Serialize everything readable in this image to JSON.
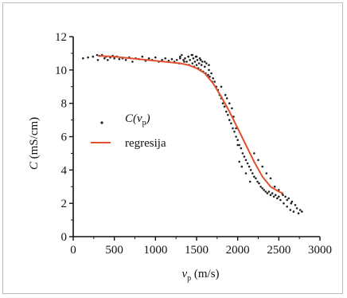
{
  "chart_data": {
    "type": "scatter",
    "title": "",
    "xlabel": {
      "main": "v",
      "sub": "p",
      "unit": " (m/s)"
    },
    "ylabel": {
      "main": "C",
      "unit": " (mS/cm)"
    },
    "xlim": [
      0,
      3000
    ],
    "ylim": [
      0,
      12
    ],
    "xticks": [
      0,
      500,
      1000,
      1500,
      2000,
      2500,
      3000
    ],
    "yticks": [
      0,
      2,
      4,
      6,
      8,
      10,
      12
    ],
    "grid": false,
    "legend_position": "center-left",
    "colors": {
      "points": "#222222",
      "regression": "#e0522f",
      "axis": "#111111"
    },
    "legend": {
      "points_label": {
        "main": "C(v",
        "sub": "p",
        "close": ")"
      },
      "regression_label": "regresija"
    },
    "series": [
      {
        "name": "C(vp)",
        "kind": "points",
        "x": [
          120,
          180,
          240,
          290,
          300,
          320,
          350,
          380,
          400,
          420,
          450,
          480,
          500,
          530,
          560,
          600,
          640,
          680,
          720,
          760,
          800,
          840,
          880,
          920,
          960,
          1000,
          1040,
          1080,
          1120,
          1160,
          1200,
          1230,
          1260,
          1290,
          1300,
          1320,
          1340,
          1360,
          1380,
          1400,
          1410,
          1420,
          1440,
          1450,
          1460,
          1470,
          1480,
          1490,
          1500,
          1510,
          1520,
          1530,
          1540,
          1550,
          1560,
          1570,
          1580,
          1600,
          1610,
          1620,
          1640,
          1650,
          1660,
          1680,
          1690,
          1700,
          1720,
          1740,
          1760,
          1780,
          1800,
          1820,
          1840,
          1860,
          1880,
          1900,
          1920,
          1940,
          1960,
          1980,
          2000,
          2020,
          2040,
          2060,
          2080,
          2100,
          2120,
          2140,
          2160,
          2180,
          2200,
          2220,
          2240,
          2260,
          2280,
          2300,
          2320,
          2340,
          2360,
          2380,
          2400,
          2420,
          2440,
          2460,
          2480,
          2500,
          2520,
          2540,
          2560,
          2580,
          2600,
          2620,
          2640,
          2660,
          2680,
          2700,
          2720,
          2740,
          2760,
          2780,
          1850,
          1900,
          1950,
          1980,
          2000,
          2020,
          1800,
          1870,
          1930,
          2050,
          2100,
          2150,
          1400,
          1450,
          1500,
          1550,
          1600,
          1650,
          1300,
          1350,
          2400,
          2450,
          2500,
          2550,
          2600,
          2650,
          2350,
          2300,
          2250,
          2200
        ],
        "y": [
          10.7,
          10.75,
          10.8,
          10.9,
          10.6,
          10.85,
          10.9,
          10.7,
          10.8,
          10.6,
          10.75,
          10.85,
          10.7,
          10.8,
          10.65,
          10.7,
          10.6,
          10.75,
          10.5,
          10.7,
          10.65,
          10.8,
          10.55,
          10.7,
          10.6,
          10.75,
          10.5,
          10.6,
          10.7,
          10.55,
          10.65,
          10.5,
          10.6,
          10.4,
          10.8,
          10.9,
          10.6,
          10.7,
          10.5,
          10.8,
          10.3,
          10.6,
          10.9,
          10.4,
          10.7,
          10.2,
          10.5,
          10.8,
          10.3,
          10.6,
          10.1,
          10.4,
          10.7,
          10.0,
          10.3,
          10.5,
          9.9,
          10.2,
          9.8,
          10.4,
          9.7,
          10.0,
          9.6,
          9.8,
          9.3,
          9.5,
          9.3,
          9.0,
          8.8,
          8.5,
          8.3,
          8.0,
          7.8,
          7.5,
          7.3,
          7.0,
          6.8,
          6.5,
          6.3,
          6.0,
          5.8,
          5.5,
          5.3,
          5.0,
          4.8,
          4.6,
          4.4,
          4.2,
          4.0,
          3.8,
          3.6,
          3.5,
          3.3,
          3.2,
          3.0,
          2.9,
          2.8,
          2.7,
          2.6,
          2.7,
          2.5,
          2.6,
          2.4,
          2.5,
          2.3,
          2.4,
          2.2,
          2.6,
          2.0,
          2.4,
          1.8,
          2.3,
          1.6,
          2.1,
          1.5,
          1.9,
          1.7,
          1.4,
          1.6,
          1.5,
          8.5,
          8.0,
          7.2,
          6.5,
          5.5,
          4.5,
          9.0,
          8.3,
          7.7,
          4.2,
          3.8,
          3.3,
          10.8,
          10.9,
          10.8,
          10.6,
          10.5,
          10.3,
          10.7,
          10.5,
          3.5,
          3.0,
          2.8,
          2.5,
          2.2,
          2.0,
          3.8,
          4.2,
          4.6,
          5.0
        ]
      },
      {
        "name": "regresija",
        "kind": "line",
        "x": [
          300,
          500,
          700,
          900,
          1100,
          1300,
          1400,
          1500,
          1600,
          1700,
          1800,
          1900,
          2000,
          2100,
          2200,
          2300,
          2400,
          2500,
          2550
        ],
        "y": [
          10.85,
          10.8,
          10.7,
          10.6,
          10.5,
          10.4,
          10.3,
          10.1,
          9.8,
          9.2,
          8.4,
          7.5,
          6.5,
          5.5,
          4.5,
          3.6,
          3.0,
          2.7,
          2.6
        ]
      }
    ]
  }
}
